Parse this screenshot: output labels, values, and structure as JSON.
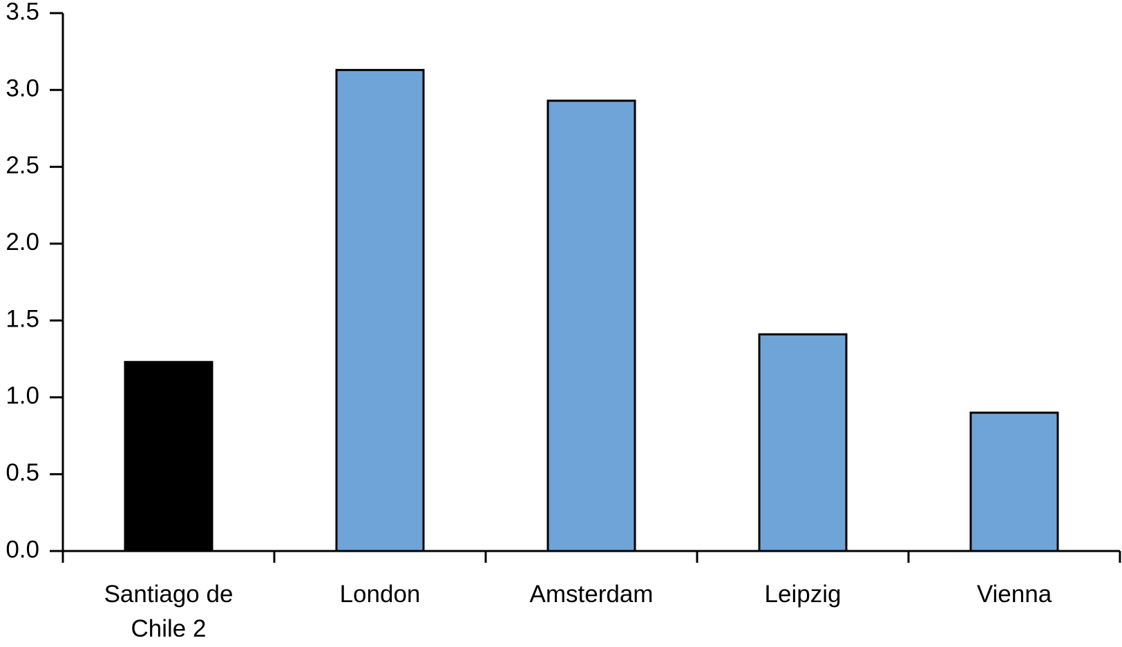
{
  "chart_data": {
    "type": "bar",
    "categories": [
      "Santiago de Chile 2",
      "London",
      "Amsterdam",
      "Leipzig",
      "Vienna"
    ],
    "values": [
      1.23,
      3.13,
      2.93,
      1.41,
      0.9
    ],
    "colors": [
      "#000000",
      "#6fa4d8",
      "#6fa4d8",
      "#6fa4d8",
      "#6fa4d8"
    ],
    "ylim": [
      0,
      3.5
    ],
    "yticks": [
      {
        "value": 0,
        "label": "0.0"
      },
      0.5,
      {
        "value": 1,
        "label": "1.0"
      },
      1.5,
      {
        "value": 2,
        "label": "2.0"
      },
      2.5,
      {
        "value": 3,
        "label": "3.0"
      },
      3.5
    ],
    "grid": false
  }
}
